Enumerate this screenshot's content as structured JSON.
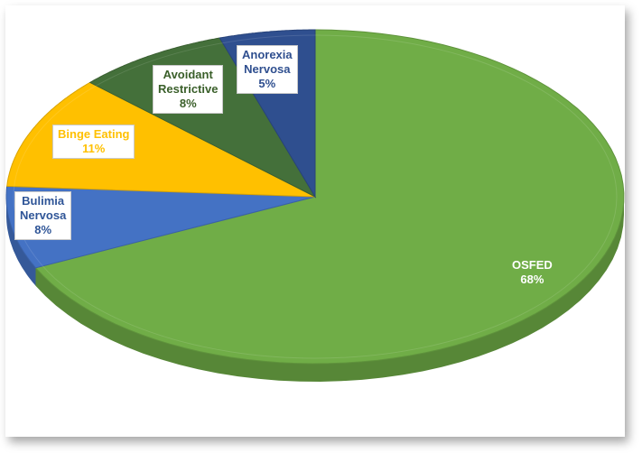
{
  "chart_data": {
    "type": "pie",
    "title": "",
    "slices": [
      {
        "label_lines": [
          "OSFED"
        ],
        "value": 68,
        "pct_text": "68%",
        "color": "#70ad47",
        "text_color": "#ffffff"
      },
      {
        "label_lines": [
          "Bulimia",
          "Nervosa"
        ],
        "value": 8,
        "pct_text": "8%",
        "color": "#4472c4",
        "text_color": "#2f5597"
      },
      {
        "label_lines": [
          "Binge Eating"
        ],
        "value": 11,
        "pct_text": "11%",
        "color": "#ffc000",
        "text_color": "#ffc000"
      },
      {
        "label_lines": [
          "Avoidant",
          "Restrictive"
        ],
        "value": 8,
        "pct_text": "8%",
        "color": "#44703a",
        "text_color": "#3a5f2a"
      },
      {
        "label_lines": [
          "Anorexia",
          "Nervosa"
        ],
        "value": 5,
        "pct_text": "5%",
        "color": "#2f4f8f",
        "text_color": "#2f4f8f"
      }
    ],
    "legend": "none",
    "style": "3d-pie"
  }
}
